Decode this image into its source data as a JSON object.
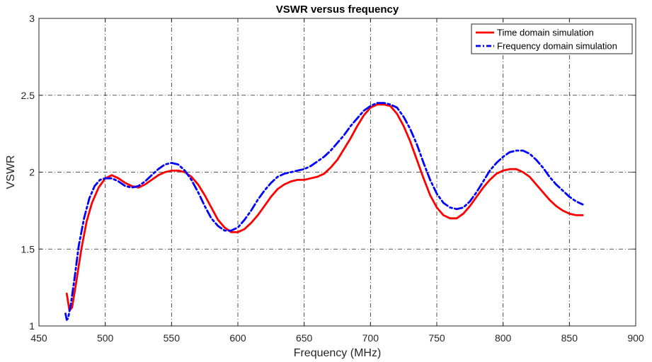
{
  "chart_data": {
    "type": "line",
    "title": "VSWR versus frequency",
    "xlabel": "Frequency (MHz)",
    "ylabel": "VSWR",
    "xlim": [
      450,
      900
    ],
    "ylim": [
      1,
      3
    ],
    "xticks": [
      450,
      500,
      550,
      600,
      650,
      700,
      750,
      800,
      850,
      900
    ],
    "yticks": [
      1,
      1.5,
      2,
      2.5,
      3
    ],
    "xtick_labels": [
      "450",
      "500",
      "550",
      "600",
      "650",
      "700",
      "750",
      "800",
      "850",
      "900"
    ],
    "ytick_labels": [
      "1",
      "1.5",
      "2",
      "2.5",
      "3"
    ],
    "grid": true,
    "legend_position": "top-right",
    "series": [
      {
        "name": "Time domain simulation",
        "color": "#ff0000",
        "style": "solid",
        "x": [
          471,
          473,
          475,
          478,
          482,
          486,
          490,
          495,
          500,
          505,
          510,
          515,
          520,
          525,
          530,
          535,
          540,
          545,
          550,
          555,
          560,
          565,
          570,
          575,
          580,
          585,
          590,
          595,
          600,
          605,
          610,
          615,
          620,
          625,
          630,
          635,
          640,
          645,
          650,
          655,
          660,
          665,
          670,
          675,
          680,
          685,
          690,
          695,
          700,
          705,
          710,
          715,
          720,
          725,
          730,
          735,
          740,
          745,
          750,
          755,
          760,
          765,
          770,
          775,
          780,
          785,
          790,
          795,
          800,
          805,
          810,
          815,
          820,
          825,
          830,
          835,
          840,
          845,
          850,
          855,
          860
        ],
        "y": [
          1.21,
          1.1,
          1.12,
          1.28,
          1.5,
          1.68,
          1.8,
          1.9,
          1.96,
          1.98,
          1.96,
          1.93,
          1.91,
          1.9,
          1.92,
          1.95,
          1.98,
          2.0,
          2.01,
          2.01,
          2.0,
          1.97,
          1.92,
          1.85,
          1.77,
          1.69,
          1.64,
          1.61,
          1.61,
          1.63,
          1.67,
          1.72,
          1.78,
          1.84,
          1.89,
          1.92,
          1.94,
          1.95,
          1.95,
          1.96,
          1.97,
          1.99,
          2.03,
          2.08,
          2.15,
          2.22,
          2.3,
          2.37,
          2.42,
          2.44,
          2.44,
          2.43,
          2.38,
          2.3,
          2.2,
          2.08,
          1.96,
          1.85,
          1.77,
          1.72,
          1.7,
          1.7,
          1.73,
          1.78,
          1.84,
          1.9,
          1.95,
          1.99,
          2.01,
          2.02,
          2.02,
          2.0,
          1.97,
          1.92,
          1.87,
          1.82,
          1.78,
          1.75,
          1.73,
          1.72,
          1.72
        ]
      },
      {
        "name": "Frequency domain simulation",
        "color": "#0000ff",
        "style": "dashdot",
        "x": [
          470,
          471,
          472,
          474,
          477,
          480,
          484,
          488,
          492,
          496,
          500,
          505,
          510,
          515,
          520,
          525,
          530,
          535,
          540,
          545,
          550,
          555,
          560,
          565,
          570,
          575,
          580,
          585,
          590,
          595,
          600,
          605,
          610,
          615,
          620,
          625,
          630,
          635,
          640,
          645,
          650,
          655,
          660,
          665,
          670,
          675,
          680,
          685,
          690,
          695,
          700,
          705,
          710,
          715,
          720,
          725,
          730,
          735,
          740,
          745,
          750,
          755,
          760,
          765,
          770,
          775,
          780,
          785,
          790,
          795,
          800,
          805,
          810,
          815,
          820,
          825,
          830,
          835,
          840,
          845,
          850,
          855,
          860
        ],
        "y": [
          1.08,
          1.04,
          1.05,
          1.14,
          1.32,
          1.52,
          1.7,
          1.83,
          1.91,
          1.95,
          1.96,
          1.96,
          1.94,
          1.91,
          1.9,
          1.91,
          1.94,
          1.98,
          2.02,
          2.05,
          2.06,
          2.05,
          2.01,
          1.95,
          1.87,
          1.78,
          1.7,
          1.65,
          1.62,
          1.62,
          1.64,
          1.69,
          1.75,
          1.82,
          1.88,
          1.93,
          1.97,
          1.99,
          2.0,
          2.01,
          2.02,
          2.04,
          2.07,
          2.1,
          2.14,
          2.19,
          2.24,
          2.3,
          2.35,
          2.4,
          2.43,
          2.45,
          2.45,
          2.44,
          2.42,
          2.36,
          2.28,
          2.18,
          2.06,
          1.95,
          1.86,
          1.8,
          1.77,
          1.76,
          1.77,
          1.81,
          1.87,
          1.94,
          2.01,
          2.06,
          2.1,
          2.13,
          2.14,
          2.14,
          2.12,
          2.08,
          2.03,
          1.97,
          1.92,
          1.88,
          1.84,
          1.81,
          1.79
        ]
      }
    ],
    "grid_color": "#262626",
    "axis_color": "#262626"
  }
}
